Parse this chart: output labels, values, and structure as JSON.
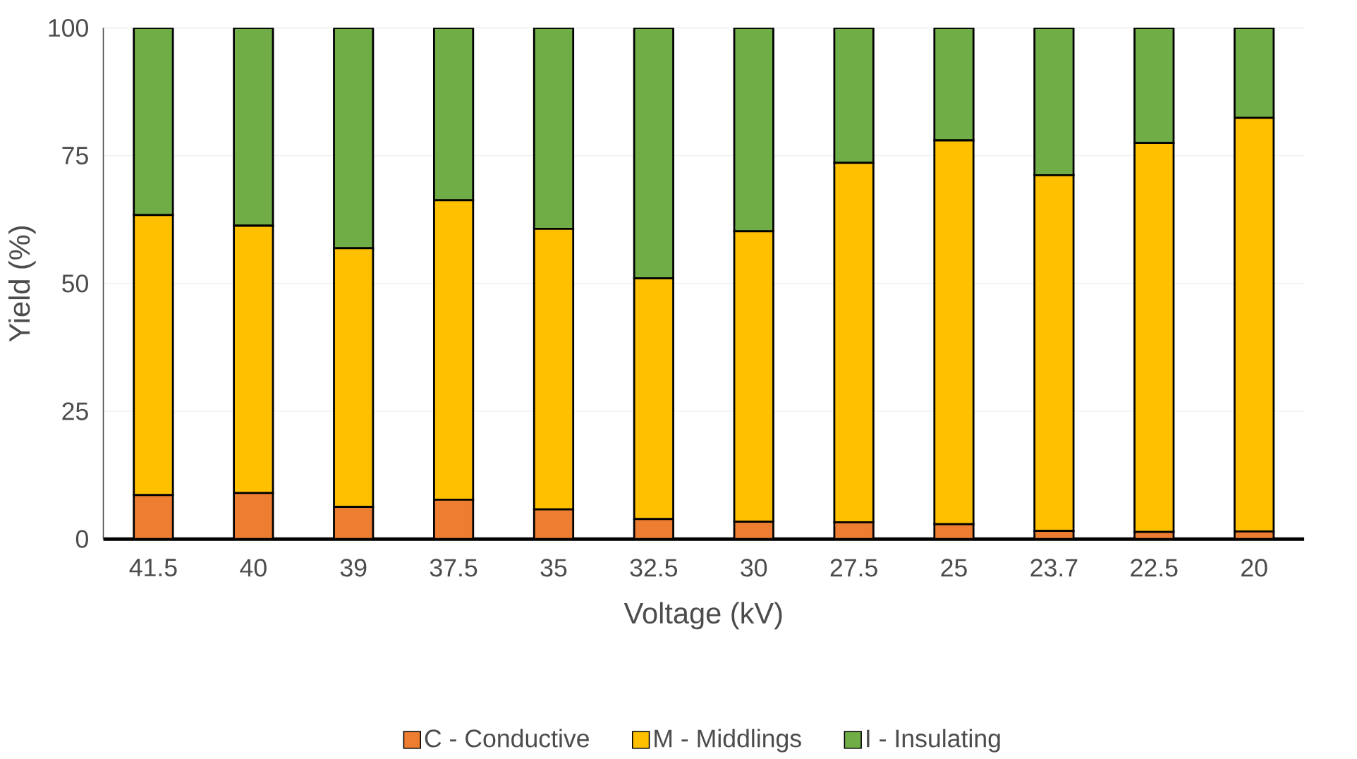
{
  "chart_data": {
    "type": "bar",
    "stacked": true,
    "xlabel": "Voltage (kV)",
    "ylabel": "Yield (%)",
    "categories": [
      "41.5",
      "40",
      "39",
      "37.5",
      "35",
      "32.5",
      "30",
      "27.5",
      "25",
      "23.7",
      "22.5",
      "20"
    ],
    "series": [
      {
        "name": "C - Conductive",
        "color": "#ed7d31",
        "values": [
          8.6,
          9.0,
          6.3,
          7.7,
          5.8,
          3.9,
          3.4,
          3.3,
          2.9,
          1.6,
          1.4,
          1.5
        ]
      },
      {
        "name": "M - Middlings",
        "color": "#ffc000",
        "values": [
          54.8,
          52.3,
          50.6,
          58.6,
          54.9,
          47.1,
          56.8,
          70.3,
          75.1,
          69.6,
          76.1,
          80.9
        ]
      },
      {
        "name": "I - Insulating",
        "color": "#70ad47",
        "values": [
          36.6,
          38.7,
          43.1,
          33.7,
          39.3,
          49.0,
          39.8,
          26.4,
          22.0,
          28.8,
          22.5,
          17.6
        ]
      }
    ],
    "ylim": [
      0,
      100
    ],
    "yticks": [
      0,
      25,
      50,
      75,
      100
    ],
    "grid": "y",
    "legend": "bottom"
  }
}
